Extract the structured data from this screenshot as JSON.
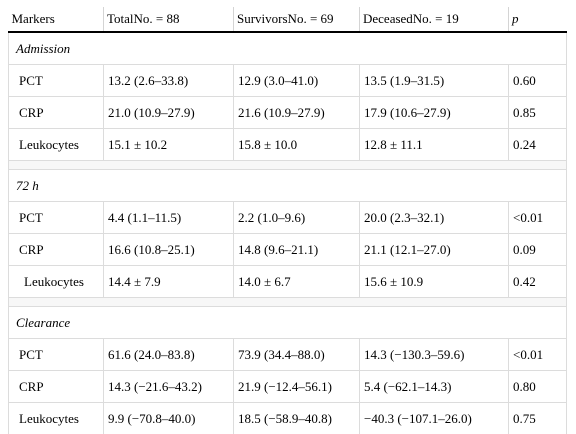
{
  "headers": [
    "Markers",
    "TotalNo. = 88",
    "SurvivorsNo. = 69",
    "DeceasedNo. = 19",
    "p"
  ],
  "sections": [
    {
      "title": "Admission",
      "rows": [
        [
          "PCT",
          "13.2 (2.6–33.8)",
          "12.9 (3.0–41.0)",
          "13.5 (1.9–31.5)",
          "0.60"
        ],
        [
          "CRP",
          "21.0 (10.9–27.9)",
          "21.6 (10.9–27.9)",
          "17.9 (10.6–27.9)",
          "0.85"
        ],
        [
          "Leukocytes",
          "15.1 ± 10.2",
          "15.8 ± 10.0",
          "12.8 ± 11.1",
          "0.24"
        ]
      ]
    },
    {
      "title": "72 h",
      "rows": [
        [
          "PCT",
          "4.4 (1.1–11.5)",
          "2.2 (1.0–9.6)",
          "20.0 (2.3–32.1)",
          "<0.01"
        ],
        [
          "CRP",
          "16.6 (10.8–25.1)",
          "14.8 (9.6–21.1)",
          "21.1 (12.1–27.0)",
          "0.09"
        ],
        [
          "Leukocytes",
          "14.4 ± 7.9",
          "14.0 ± 6.7",
          "15.6 ± 10.9",
          "0.42"
        ]
      ]
    },
    {
      "title": "Clearance",
      "rows": [
        [
          "PCT",
          "61.6 (24.0–83.8)",
          "73.9 (34.4–88.0)",
          "14.3 (−130.3–59.6)",
          "<0.01"
        ],
        [
          "CRP",
          "14.3 (−21.6–43.2)",
          "21.9 (−12.4–56.1)",
          "5.4 (−62.1–14.3)",
          "0.80"
        ],
        [
          "Leukocytes",
          "9.9 (−70.8–40.0)",
          "18.5 (−58.9–40.8)",
          "−40.3 (−107.1–26.0)",
          "0.75"
        ]
      ]
    }
  ]
}
